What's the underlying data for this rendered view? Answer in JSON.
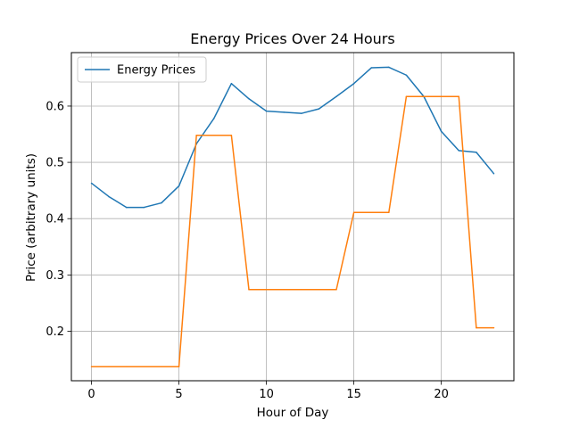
{
  "chart_data": {
    "type": "line",
    "title": "Energy Prices Over 24 Hours",
    "xlabel": "Hour of Day",
    "ylabel": "Price (arbitrary units)",
    "xlim": [
      -1.15,
      24.15
    ],
    "ylim": [
      0.112,
      0.695
    ],
    "xticks": [
      0,
      5,
      10,
      15,
      20
    ],
    "yticks": [
      0.2,
      0.3,
      0.4,
      0.5,
      0.6
    ],
    "grid": true,
    "legend_position": "upper left",
    "x": [
      0,
      1,
      2,
      3,
      4,
      5,
      6,
      7,
      8,
      9,
      10,
      11,
      12,
      13,
      14,
      15,
      16,
      17,
      18,
      19,
      20,
      21,
      22,
      23
    ],
    "series": [
      {
        "name": "Energy Prices",
        "color": "#1f77b4",
        "in_legend": true,
        "values": [
          0.463,
          0.439,
          0.42,
          0.42,
          0.428,
          0.458,
          0.533,
          0.578,
          0.64,
          0.613,
          0.591,
          0.589,
          0.587,
          0.595,
          0.617,
          0.64,
          0.668,
          0.669,
          0.655,
          0.617,
          0.555,
          0.521,
          0.518,
          0.48
        ]
      },
      {
        "color": "#ff7f0e",
        "in_legend": false,
        "values": [
          0.137,
          0.137,
          0.137,
          0.137,
          0.137,
          0.137,
          0.548,
          0.548,
          0.548,
          0.274,
          0.274,
          0.274,
          0.274,
          0.274,
          0.274,
          0.411,
          0.411,
          0.411,
          0.617,
          0.617,
          0.617,
          0.617,
          0.206,
          0.206
        ]
      }
    ]
  }
}
